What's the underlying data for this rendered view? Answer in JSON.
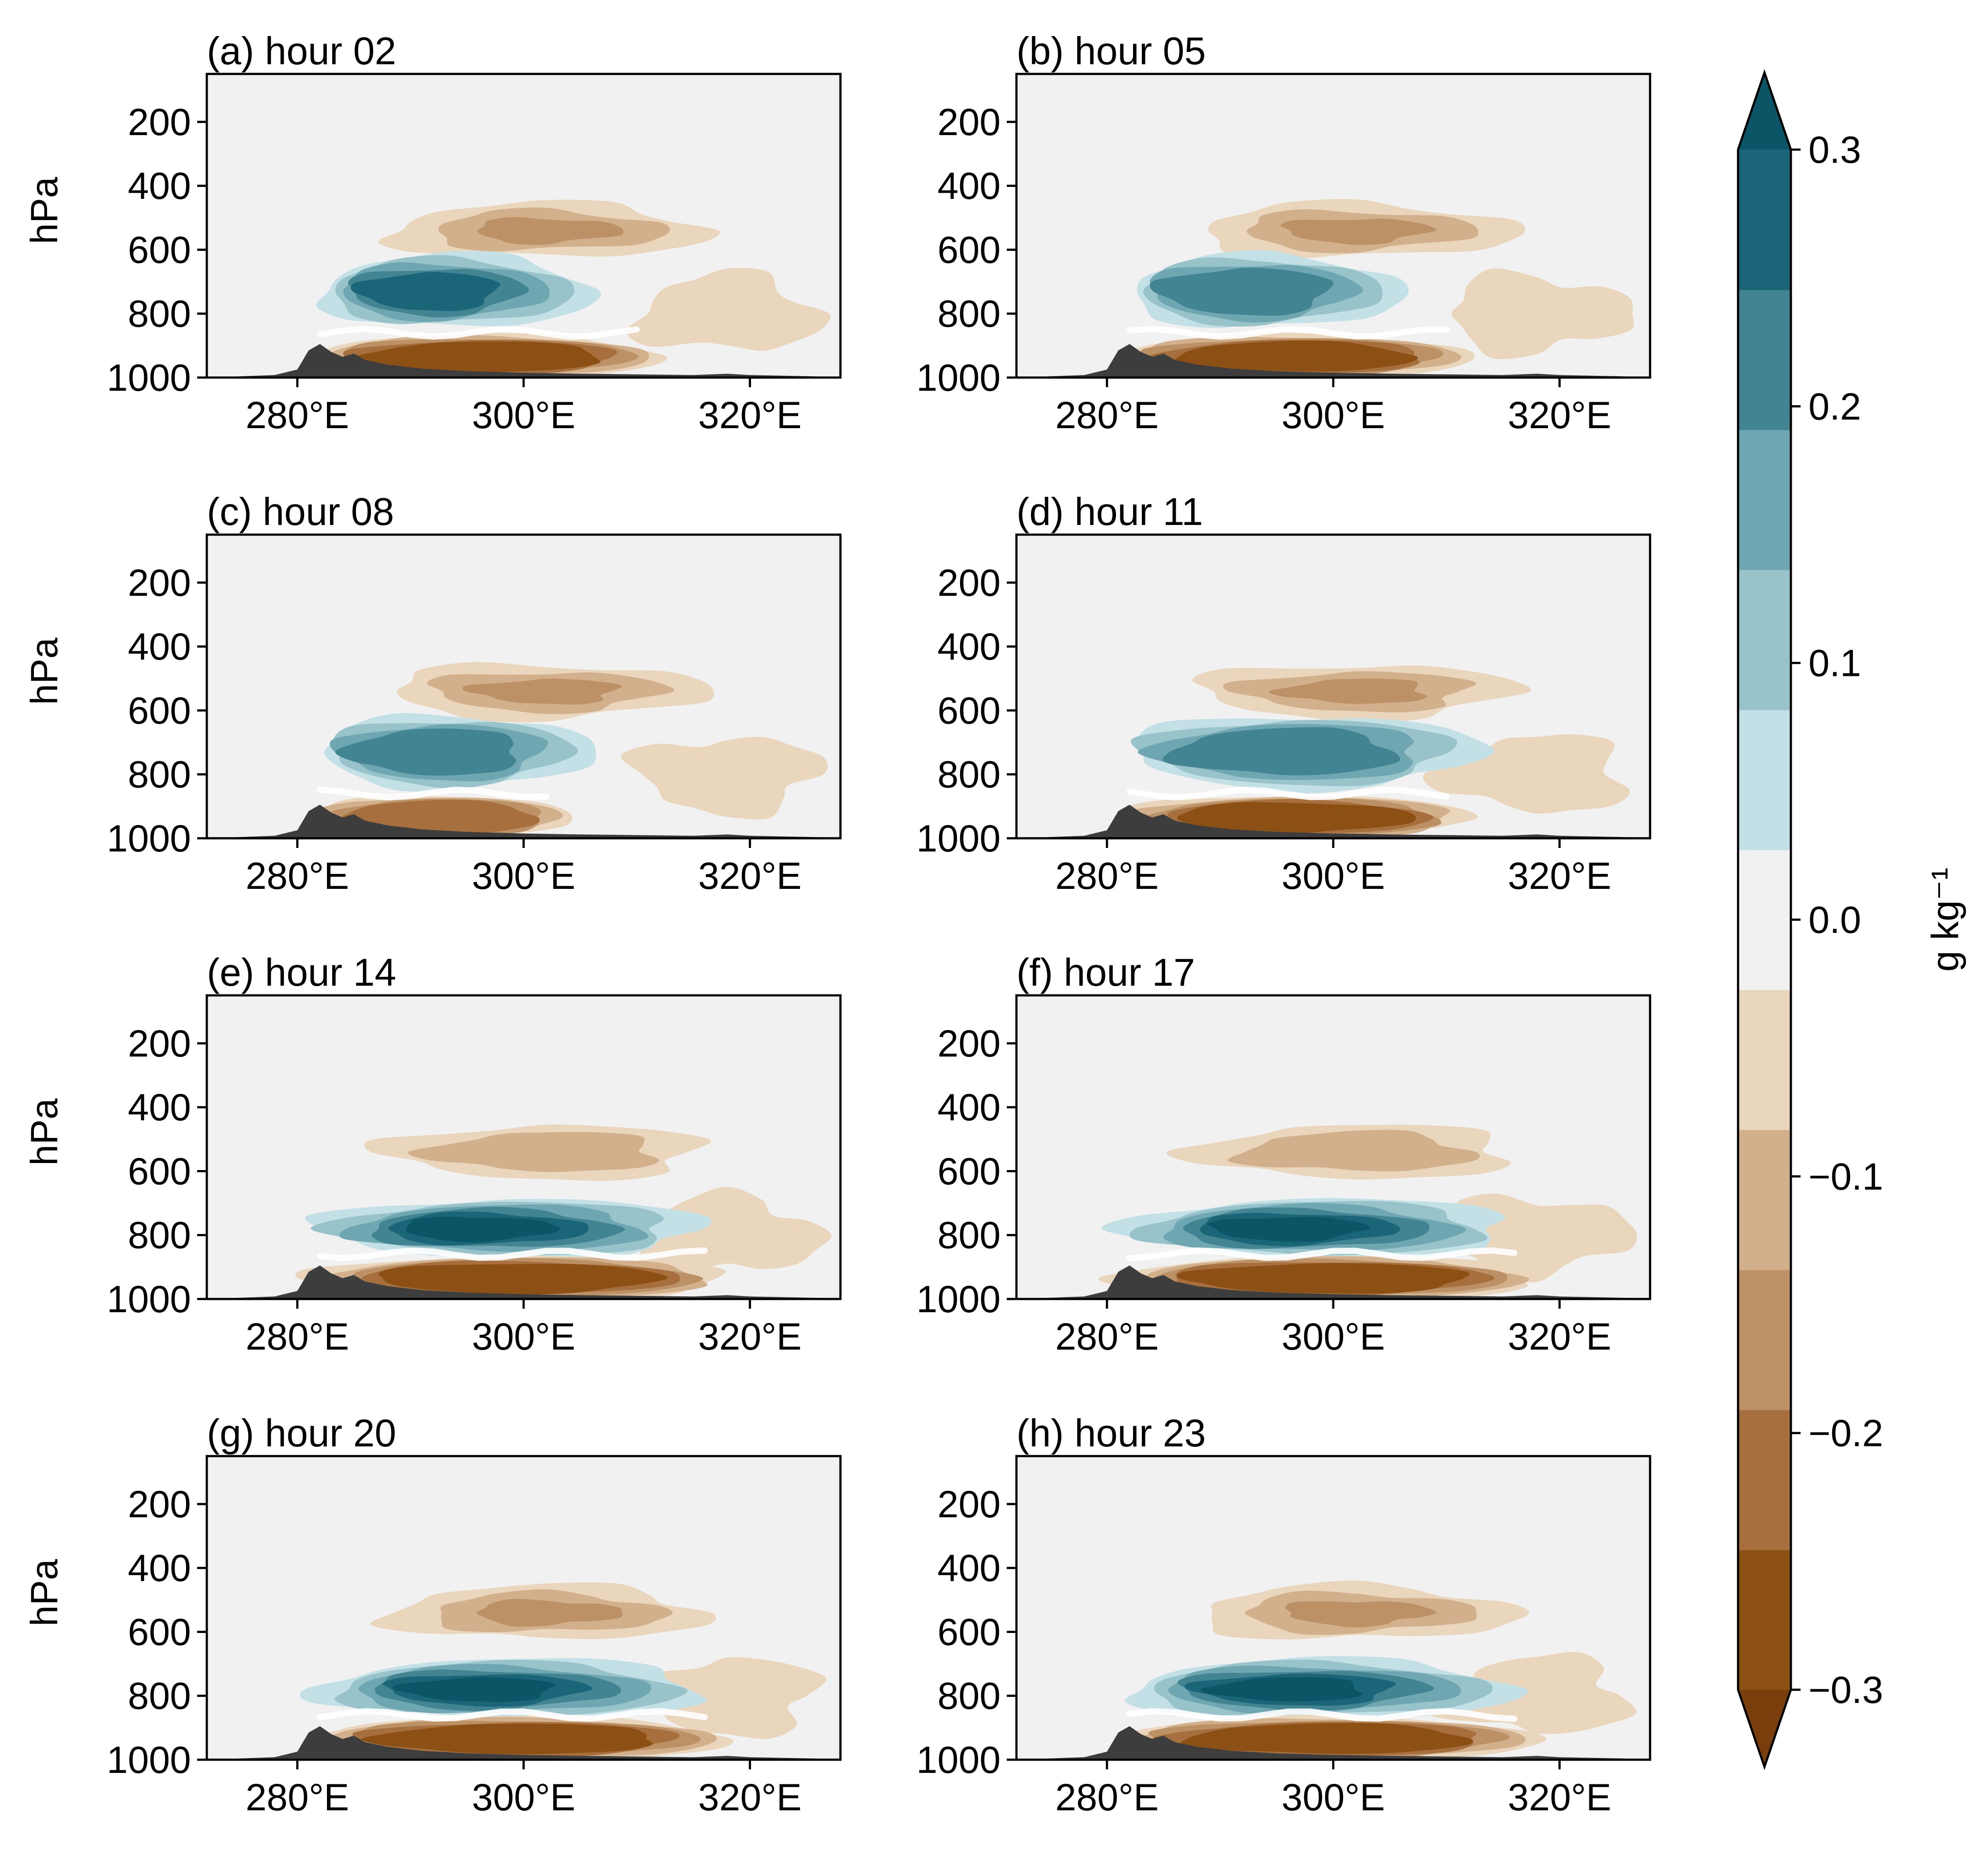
{
  "chart_data": {
    "type": "contourf",
    "y_axis": {
      "label": "hPa",
      "ticks": [
        200,
        400,
        600,
        800,
        1000
      ],
      "range": [
        1000,
        50
      ]
    },
    "x_axis": {
      "ticks": [
        "280°E",
        "300°E",
        "320°E"
      ],
      "tick_values": [
        280,
        300,
        320
      ],
      "range": [
        272,
        328
      ]
    },
    "colorbar": {
      "label": "g kg⁻¹",
      "ticks": [
        "0.3",
        "0.2",
        "0.1",
        "0.0",
        "−0.1",
        "−0.2",
        "−0.3"
      ],
      "tick_values": [
        0.3,
        0.2,
        0.1,
        0.0,
        -0.1,
        -0.2,
        -0.3
      ],
      "levels": [
        -0.3,
        -0.25,
        -0.2,
        -0.15,
        -0.1,
        -0.05,
        0.05,
        0.1,
        0.15,
        0.2,
        0.25,
        0.3
      ],
      "extend": "both",
      "colors": [
        "#8c4f14",
        "#a66f3d",
        "#bc9166",
        "#d2b08c",
        "#e9d6bd",
        "#f1f1f1",
        "#c2e0e6",
        "#98c3cb",
        "#6ea6b1",
        "#438493",
        "#1a6678",
        "#0b5566",
        "#7a3d0c"
      ]
    },
    "background_color": "#f1f1f1",
    "terrain_color": "#3d3d3d",
    "panels": [
      {
        "title": "(a) hour 02",
        "positive_intensity": 0.25,
        "negative_intensity": 0.28,
        "upper_negative": 0.18
      },
      {
        "title": "(b) hour 05",
        "positive_intensity": 0.22,
        "negative_intensity": 0.28,
        "upper_negative": 0.18
      },
      {
        "title": "(c) hour 08",
        "positive_intensity": 0.2,
        "negative_intensity": 0.22,
        "upper_negative": 0.15
      },
      {
        "title": "(d) hour 11",
        "positive_intensity": 0.22,
        "negative_intensity": 0.3,
        "upper_negative": 0.14
      },
      {
        "title": "(e) hour 14",
        "positive_intensity": 0.32,
        "negative_intensity": 0.32,
        "upper_negative": 0.12
      },
      {
        "title": "(f) hour 17",
        "positive_intensity": 0.32,
        "negative_intensity": 0.32,
        "upper_negative": 0.12
      },
      {
        "title": "(g) hour 20",
        "positive_intensity": 0.3,
        "negative_intensity": 0.32,
        "upper_negative": 0.14
      },
      {
        "title": "(h) hour 23",
        "positive_intensity": 0.3,
        "negative_intensity": 0.32,
        "upper_negative": 0.15
      }
    ]
  }
}
